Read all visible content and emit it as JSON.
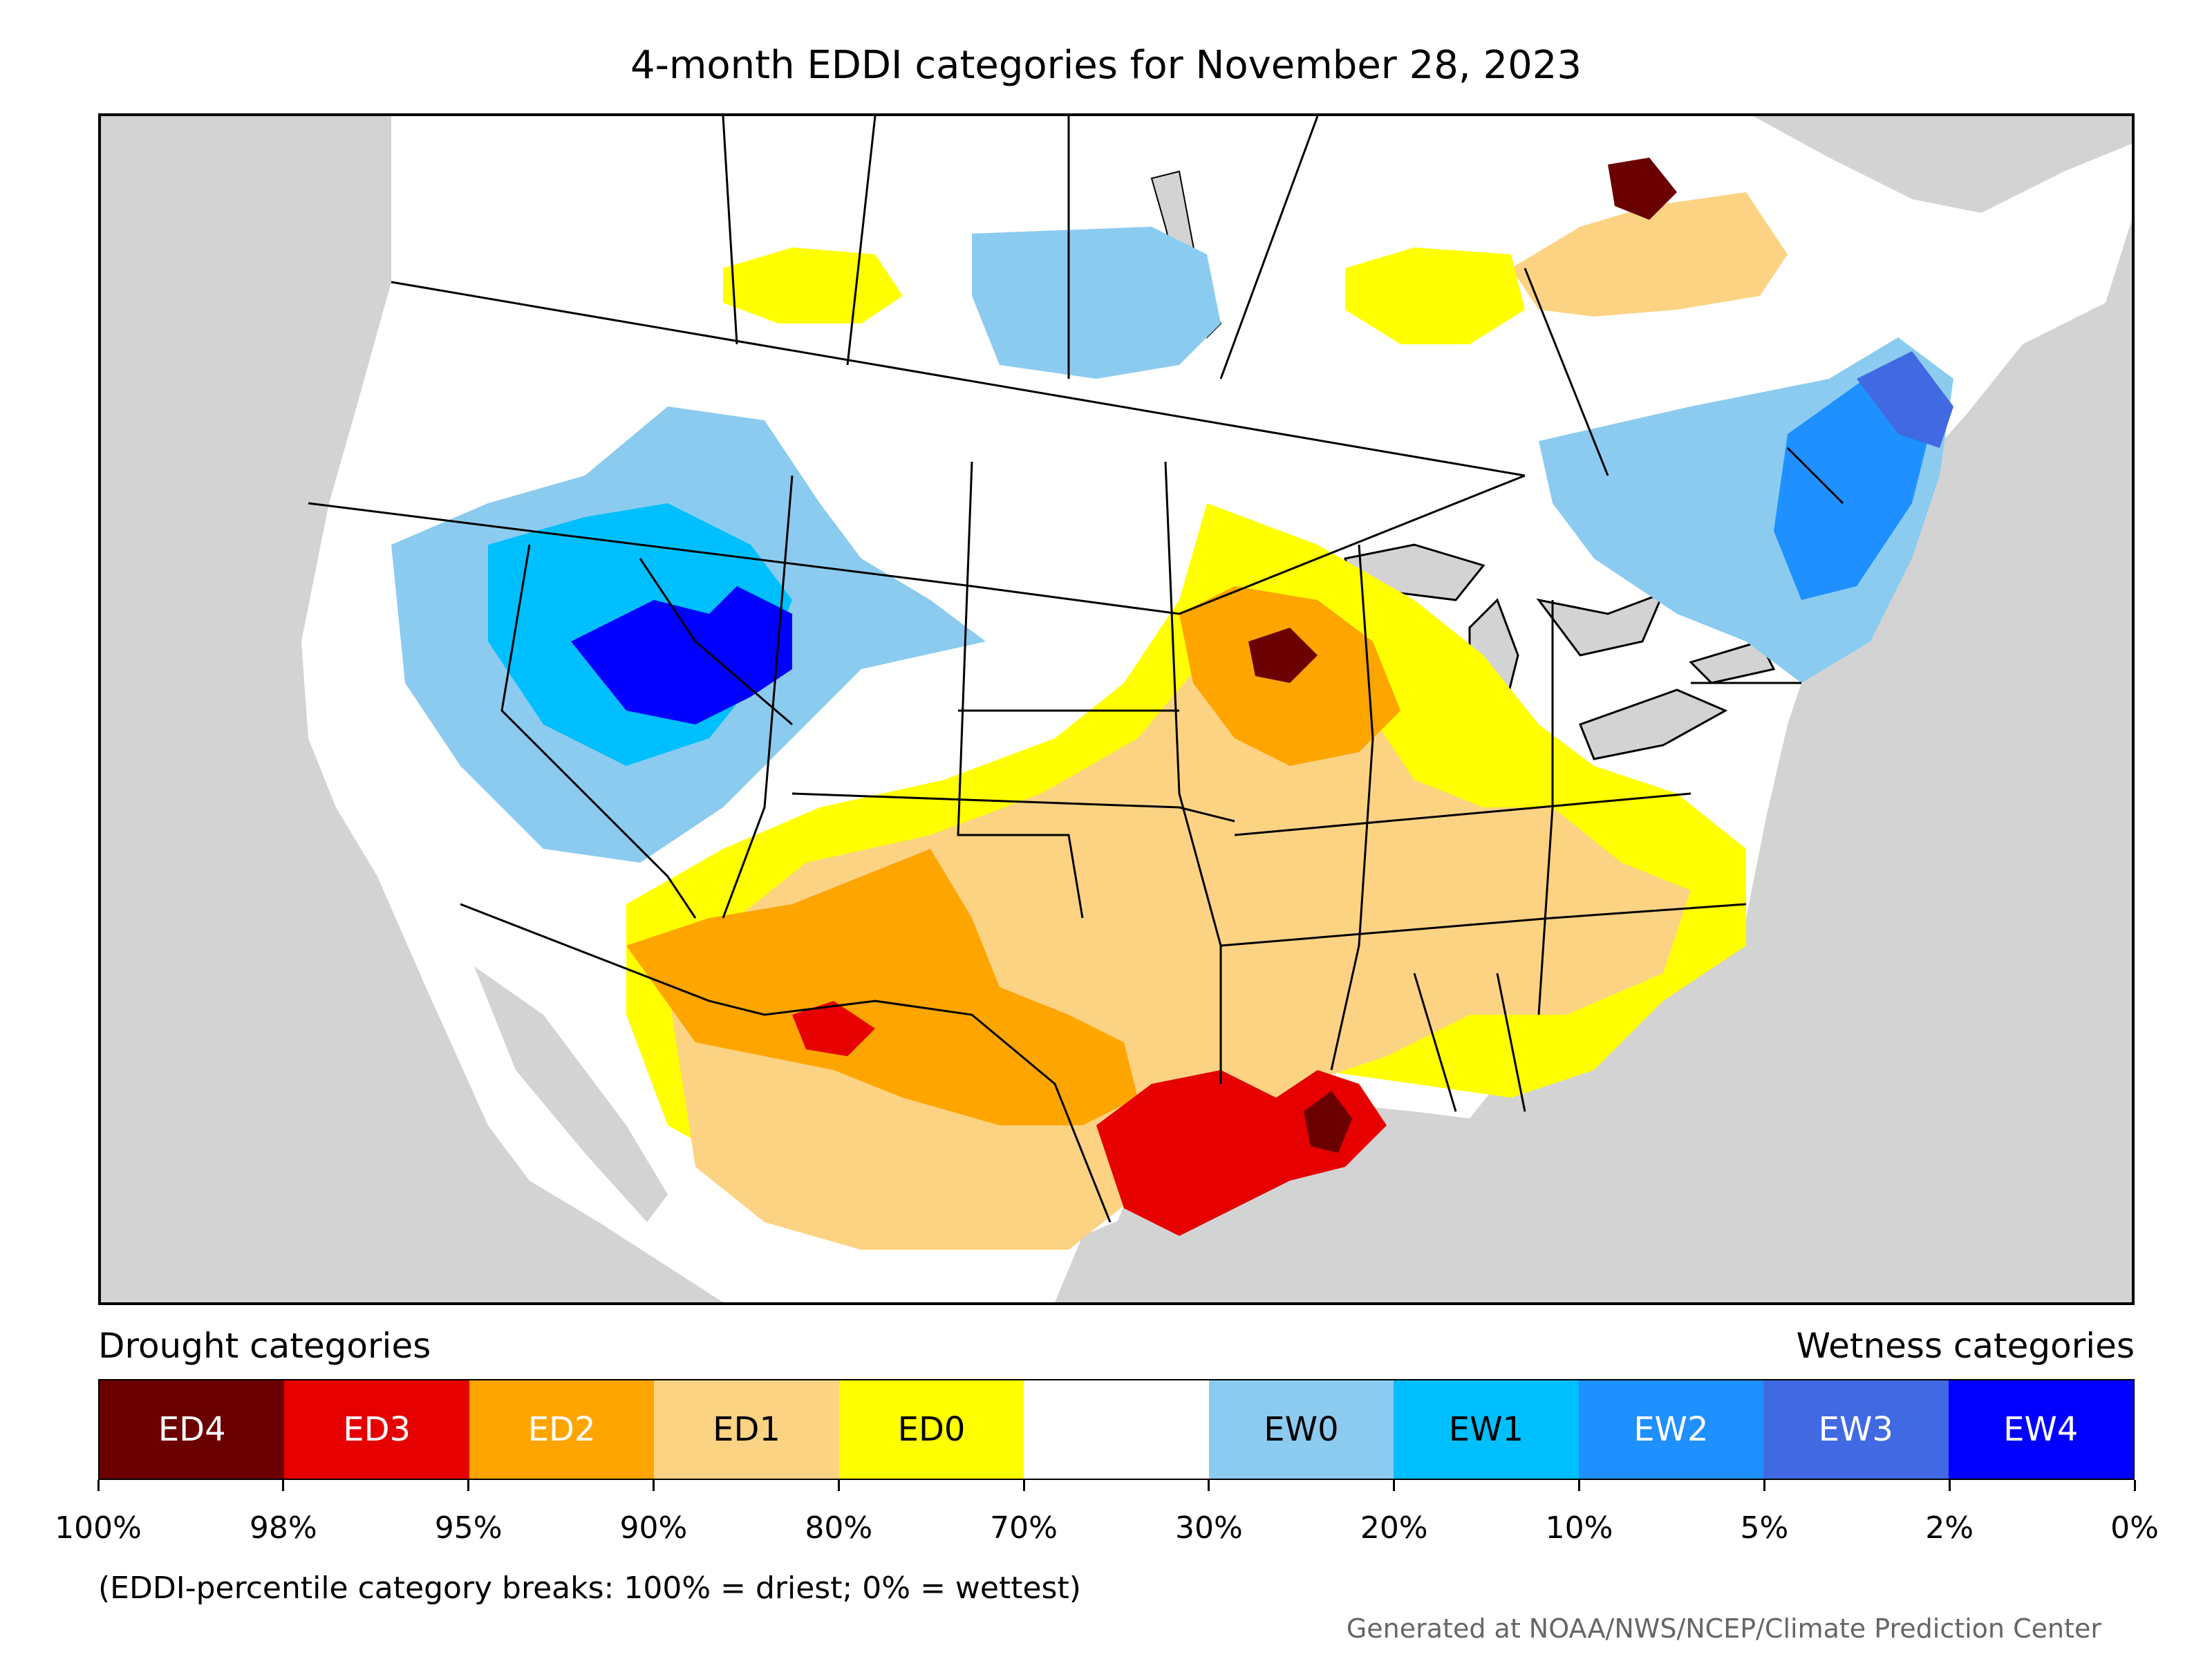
{
  "title": "4-month EDDI categories for November 28, 2023",
  "legend": {
    "left_heading": "Drought categories",
    "right_heading": "Wetness categories",
    "categories": [
      {
        "label": "ED4",
        "color": "#6b0000",
        "text_color": "#ffffff"
      },
      {
        "label": "ED3",
        "color": "#e60000",
        "text_color": "#ffffff"
      },
      {
        "label": "ED2",
        "color": "#ffa500",
        "text_color": "#ffffff"
      },
      {
        "label": "ED1",
        "color": "#fcd383",
        "text_color": "#000000"
      },
      {
        "label": "ED0",
        "color": "#ffff00",
        "text_color": "#000000"
      },
      {
        "label": "",
        "color": "#ffffff",
        "text_color": "#000000"
      },
      {
        "label": "EW0",
        "color": "#8ccbf0",
        "text_color": "#000000"
      },
      {
        "label": "EW1",
        "color": "#00bfff",
        "text_color": "#000000"
      },
      {
        "label": "EW2",
        "color": "#1e90ff",
        "text_color": "#ffffff"
      },
      {
        "label": "EW3",
        "color": "#4169e1",
        "text_color": "#ffffff"
      },
      {
        "label": "EW4",
        "color": "#0000ff",
        "text_color": "#ffffff"
      }
    ],
    "tick_labels": [
      "100%",
      "98%",
      "95%",
      "90%",
      "80%",
      "70%",
      "30%",
      "20%",
      "10%",
      "5%",
      "2%",
      "0%"
    ]
  },
  "note": "(EDDI-percentile category breaks: 100% = driest; 0% = wettest)",
  "credit": "Generated at NOAA/NWS/NCEP/Climate Prediction Center",
  "map": {
    "background_color": "#d3d3d3",
    "land_color": "#ffffff",
    "border_color": "#000000"
  }
}
